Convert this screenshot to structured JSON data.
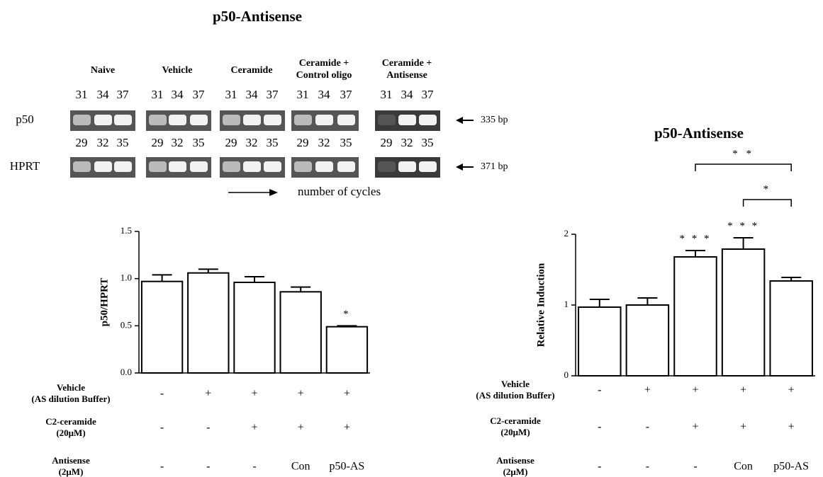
{
  "title": "p50-Antisense",
  "gel": {
    "groups": [
      {
        "label": [
          "Naive"
        ],
        "p50_cycles": [
          31,
          34,
          37
        ],
        "hprt_cycles": [
          29,
          32,
          35
        ]
      },
      {
        "label": [
          "Vehicle"
        ],
        "p50_cycles": [
          31,
          34,
          37
        ],
        "hprt_cycles": [
          29,
          32,
          35
        ]
      },
      {
        "label": [
          "Ceramide"
        ],
        "p50_cycles": [
          31,
          34,
          37
        ],
        "hprt_cycles": [
          29,
          32,
          35
        ]
      },
      {
        "label": [
          "Ceramide +",
          "Control oligo"
        ],
        "p50_cycles": [
          31,
          34,
          37
        ],
        "hprt_cycles": [
          29,
          32,
          35
        ]
      },
      {
        "label": [
          "Ceramide +",
          "Antisense"
        ],
        "p50_cycles": [
          31,
          34,
          37
        ],
        "hprt_cycles": [
          29,
          32,
          35
        ]
      }
    ],
    "rows": [
      {
        "label": "p50",
        "size": "335 bp"
      },
      {
        "label": "HPRT",
        "size": "371 bp"
      }
    ],
    "cycles_note": "number of cycles"
  },
  "chart_data": [
    {
      "type": "bar",
      "ylabel": "p50/HPRT",
      "values": [
        0.97,
        1.06,
        0.96,
        0.86,
        0.49
      ],
      "errors": [
        0.07,
        0.04,
        0.06,
        0.05,
        0.01
      ],
      "significance": [
        null,
        null,
        null,
        null,
        "*"
      ],
      "ylim": [
        0,
        1.5
      ],
      "yticks": [
        {
          "value": 0,
          "label": "0.0"
        },
        0.5,
        {
          "value": 1,
          "label": "1.0"
        },
        1.5
      ],
      "color": "#ffffff",
      "treatments": [
        {
          "label": [
            "Vehicle",
            "(AS dilution Buffer)"
          ],
          "values": [
            "-",
            "+",
            "+",
            "+",
            "+"
          ]
        },
        {
          "label": [
            "C2-ceramide",
            "(20μM)"
          ],
          "values": [
            "-",
            "-",
            "+",
            "+",
            "+"
          ]
        },
        {
          "label": [
            "Antisense",
            "(2μM)"
          ],
          "values": [
            "-",
            "-",
            "-",
            "Con",
            "p50-AS"
          ]
        }
      ]
    },
    {
      "type": "bar",
      "title": "p50-Antisense",
      "ylabel": "Relative Induction",
      "values": [
        0.97,
        1.0,
        1.68,
        1.79,
        1.34
      ],
      "errors": [
        0.11,
        0.1,
        0.09,
        0.16,
        0.05
      ],
      "significance": [
        null,
        null,
        "* * *",
        "* * *",
        null
      ],
      "comparisons": [
        {
          "from": 2,
          "to": 4,
          "text": "* *"
        },
        {
          "from": 3,
          "to": 4,
          "text": "*"
        }
      ],
      "ylim": [
        0,
        2
      ],
      "yticks": [
        0,
        1,
        2
      ],
      "color": "#ffffff",
      "treatments": [
        {
          "label": [
            "Vehicle",
            "(AS dilution Buffer)"
          ],
          "values": [
            "-",
            "+",
            "+",
            "+",
            "+"
          ]
        },
        {
          "label": [
            "C2-ceramide",
            "(20μM)"
          ],
          "values": [
            "-",
            "-",
            "+",
            "+",
            "+"
          ]
        },
        {
          "label": [
            "Antisense",
            "(2μM)"
          ],
          "values": [
            "-",
            "-",
            "-",
            "Con",
            "p50-AS"
          ]
        }
      ]
    }
  ]
}
